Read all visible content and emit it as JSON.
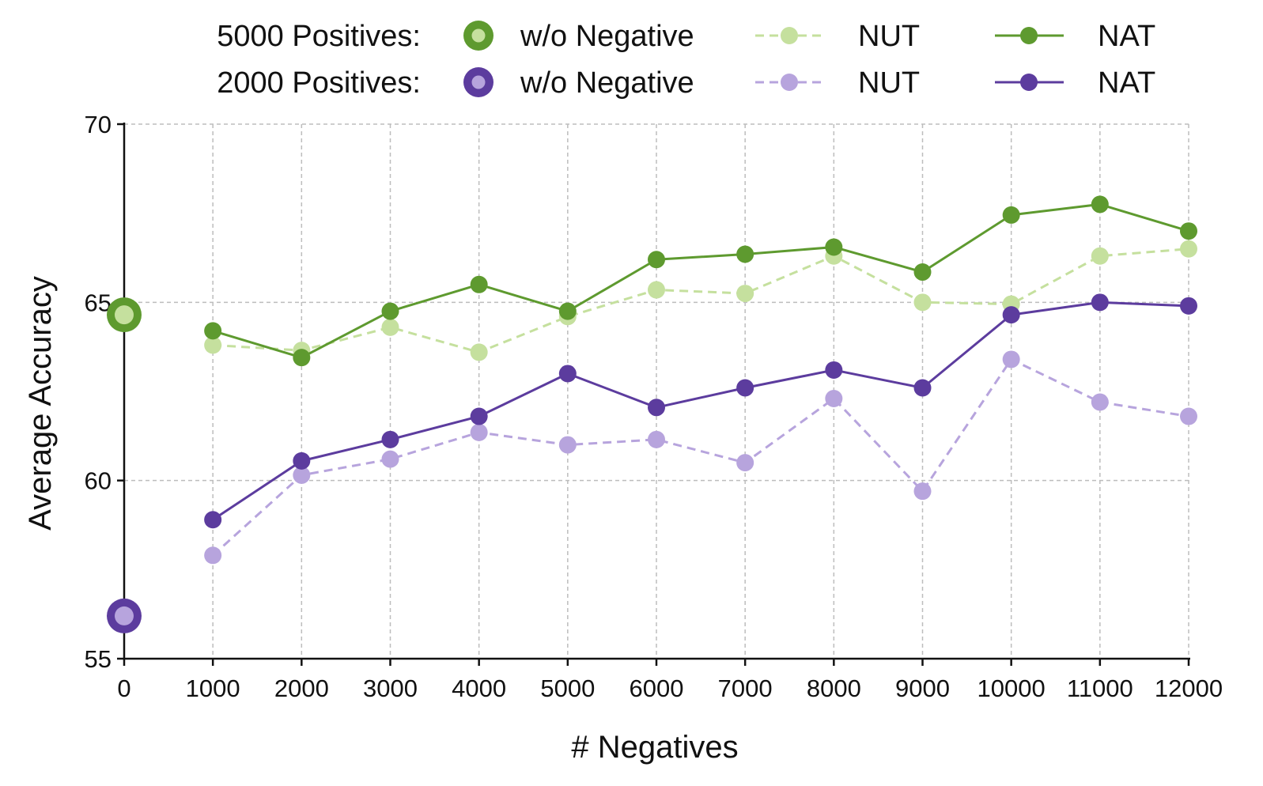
{
  "chart_data": {
    "type": "line",
    "xlabel": "# Negatives",
    "ylabel": "Average Accuracy",
    "xlim": [
      0,
      12000
    ],
    "ylim": [
      55,
      70
    ],
    "x_ticks": [
      0,
      1000,
      2000,
      3000,
      4000,
      5000,
      6000,
      7000,
      8000,
      9000,
      10000,
      11000,
      12000
    ],
    "y_ticks": [
      55,
      60,
      65,
      70
    ],
    "grid": true,
    "x": [
      1000,
      2000,
      3000,
      4000,
      5000,
      6000,
      7000,
      8000,
      9000,
      10000,
      11000,
      12000
    ],
    "legend": {
      "placement": "top",
      "row_labels": [
        "5000 Positives:",
        "2000 Positives:"
      ],
      "column_labels": [
        "w/o Negative",
        "NUT",
        "NAT"
      ]
    },
    "baselines": [
      {
        "row": 0,
        "label": "w/o Negative",
        "x": 0,
        "y": 64.65,
        "color": "#5e9a2f",
        "inner_color": "#c5e09e"
      },
      {
        "row": 1,
        "label": "w/o Negative",
        "x": 0,
        "y": 56.2,
        "color": "#5c3c9e",
        "inner_color": "#b7a4dd"
      }
    ],
    "series": [
      {
        "row": 0,
        "label": "NUT",
        "style": "dashed",
        "color": "#c5e09e",
        "values": [
          63.8,
          63.65,
          64.3,
          63.6,
          64.6,
          65.35,
          65.25,
          66.3,
          65.0,
          64.95,
          66.3,
          66.5
        ]
      },
      {
        "row": 0,
        "label": "NAT",
        "style": "solid",
        "color": "#5e9a2f",
        "values": [
          64.2,
          63.45,
          64.75,
          65.5,
          64.75,
          66.2,
          66.35,
          66.55,
          65.85,
          67.45,
          67.75,
          67.0
        ]
      },
      {
        "row": 1,
        "label": "NUT",
        "style": "dashed",
        "color": "#b7a4dd",
        "values": [
          57.9,
          60.15,
          60.6,
          61.35,
          61.0,
          61.15,
          60.5,
          62.3,
          59.7,
          63.4,
          62.2,
          61.8
        ]
      },
      {
        "row": 1,
        "label": "NAT",
        "style": "solid",
        "color": "#5c3c9e",
        "values": [
          58.9,
          60.55,
          61.15,
          61.8,
          63.0,
          62.05,
          62.6,
          63.1,
          62.6,
          64.65,
          65.0,
          64.9
        ]
      }
    ]
  }
}
